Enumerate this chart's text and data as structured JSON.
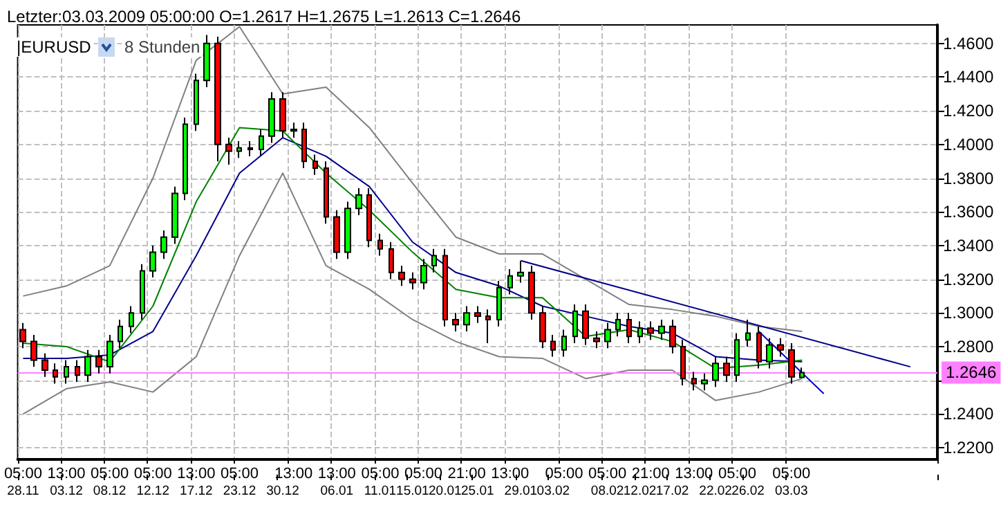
{
  "chart_data": {
    "type": "candlestick",
    "title": "Letzter:03.03.2009 05:00:00 O=1.2617 H=1.2675 L=1.2613 C=1.2646",
    "annotations": [
      "|EURUSD",
      "8 Stunden"
    ],
    "categories": [
      "05:00\n28.11",
      null,
      null,
      null,
      "13:00\n03.12",
      null,
      null,
      null,
      "05:00\n08.12",
      null,
      null,
      null,
      "05:00\n12.12",
      null,
      null,
      null,
      "13:00\n17.12",
      null,
      null,
      null,
      "05:00\n23.12",
      null,
      null,
      null,
      "\n30.12",
      "13:00",
      null,
      null,
      null,
      "13:00\n06.01",
      null,
      null,
      null,
      "05:00\n11.01",
      null,
      null,
      "\n15.01",
      "05:00",
      null,
      "\n20.01",
      null,
      "21:00",
      "\n25.01",
      null,
      null,
      "13:00",
      "\n29.01",
      null,
      null,
      "\n03.02",
      "05:00",
      null,
      null,
      null,
      "05:00\n08.02",
      null,
      null,
      "\n12.02",
      "21:00",
      null,
      "\n17.02",
      null,
      "13:00",
      null,
      "\n22.02",
      null,
      "05:00",
      "\n26.02",
      null,
      null,
      null,
      "05:00\n03.03",
      null,
      null,
      null,
      null,
      null,
      null,
      null,
      null,
      null,
      null,
      null,
      null,
      null
    ],
    "ohlc": [
      [
        1.29,
        1.294,
        1.279,
        1.283
      ],
      [
        1.283,
        1.287,
        1.268,
        1.272
      ],
      [
        1.272,
        1.276,
        1.262,
        1.266
      ],
      [
        1.266,
        1.27,
        1.258,
        1.262
      ],
      [
        1.262,
        1.272,
        1.258,
        1.268
      ],
      [
        1.268,
        1.272,
        1.259,
        1.263
      ],
      [
        1.263,
        1.278,
        1.259,
        1.274
      ],
      [
        1.274,
        1.278,
        1.264,
        1.268
      ],
      [
        1.268,
        1.287,
        1.264,
        1.283
      ],
      [
        1.283,
        1.296,
        1.279,
        1.292
      ],
      [
        1.292,
        1.304,
        1.288,
        1.3
      ],
      [
        1.3,
        1.329,
        1.296,
        1.325
      ],
      [
        1.325,
        1.34,
        1.321,
        1.336
      ],
      [
        1.336,
        1.349,
        1.332,
        1.345
      ],
      [
        1.345,
        1.375,
        1.341,
        1.371
      ],
      [
        1.371,
        1.416,
        1.367,
        1.412
      ],
      [
        1.412,
        1.442,
        1.408,
        1.438
      ],
      [
        1.438,
        1.465,
        1.434,
        1.46
      ],
      [
        1.46,
        1.464,
        1.39,
        1.4
      ],
      [
        1.4,
        1.404,
        1.388,
        1.396
      ],
      [
        1.396,
        1.402,
        1.392,
        1.398
      ],
      [
        1.398,
        1.402,
        1.393,
        1.397
      ],
      [
        1.397,
        1.409,
        1.393,
        1.405
      ],
      [
        1.405,
        1.431,
        1.401,
        1.427
      ],
      [
        1.427,
        1.431,
        1.404,
        1.408
      ],
      [
        1.408,
        1.413,
        1.404,
        1.409
      ],
      [
        1.409,
        1.413,
        1.386,
        1.39
      ],
      [
        1.39,
        1.394,
        1.382,
        1.386
      ],
      [
        1.386,
        1.39,
        1.353,
        1.357
      ],
      [
        1.357,
        1.361,
        1.332,
        1.336
      ],
      [
        1.336,
        1.366,
        1.332,
        1.362
      ],
      [
        1.362,
        1.374,
        1.358,
        1.37
      ],
      [
        1.37,
        1.374,
        1.339,
        1.343
      ],
      [
        1.343,
        1.347,
        1.334,
        1.338
      ],
      [
        1.338,
        1.342,
        1.32,
        1.324
      ],
      [
        1.324,
        1.328,
        1.316,
        1.32
      ],
      [
        1.32,
        1.324,
        1.314,
        1.318
      ],
      [
        1.318,
        1.332,
        1.314,
        1.328
      ],
      [
        1.328,
        1.338,
        1.324,
        1.334
      ],
      [
        1.334,
        1.338,
        1.292,
        1.296
      ],
      [
        1.296,
        1.3,
        1.289,
        1.293
      ],
      [
        1.293,
        1.304,
        1.289,
        1.3
      ],
      [
        1.3,
        1.304,
        1.294,
        1.298
      ],
      [
        1.298,
        1.302,
        1.282,
        1.296
      ],
      [
        1.296,
        1.319,
        1.292,
        1.315
      ],
      [
        1.315,
        1.326,
        1.311,
        1.322
      ],
      [
        1.322,
        1.331,
        1.318,
        1.324
      ],
      [
        1.324,
        1.328,
        1.296,
        1.3
      ],
      [
        1.3,
        1.304,
        1.279,
        1.283
      ],
      [
        1.283,
        1.287,
        1.274,
        1.278
      ],
      [
        1.278,
        1.29,
        1.274,
        1.286
      ],
      [
        1.286,
        1.305,
        1.282,
        1.301
      ],
      [
        1.301,
        1.305,
        1.281,
        1.285
      ],
      [
        1.285,
        1.289,
        1.279,
        1.283
      ],
      [
        1.283,
        1.294,
        1.279,
        1.29
      ],
      [
        1.29,
        1.3,
        1.286,
        1.296
      ],
      [
        1.296,
        1.3,
        1.282,
        1.286
      ],
      [
        1.286,
        1.295,
        1.282,
        1.291
      ],
      [
        1.291,
        1.295,
        1.284,
        1.288
      ],
      [
        1.288,
        1.296,
        1.284,
        1.292
      ],
      [
        1.292,
        1.296,
        1.276,
        1.28
      ],
      [
        1.28,
        1.284,
        1.257,
        1.261
      ],
      [
        1.261,
        1.265,
        1.254,
        1.258
      ],
      [
        1.258,
        1.264,
        1.254,
        1.26
      ],
      [
        1.26,
        1.274,
        1.256,
        1.27
      ],
      [
        1.27,
        1.274,
        1.259,
        1.263
      ],
      [
        1.263,
        1.288,
        1.259,
        1.284
      ],
      [
        1.284,
        1.296,
        1.28,
        1.288
      ],
      [
        1.288,
        1.292,
        1.267,
        1.271
      ],
      [
        1.271,
        1.285,
        1.267,
        1.281
      ],
      [
        1.281,
        1.285,
        1.274,
        1.278
      ],
      [
        1.278,
        1.282,
        1.258,
        1.262
      ],
      [
        1.2617,
        1.2675,
        1.2613,
        1.2646
      ],
      null,
      null,
      null,
      null,
      null,
      null,
      null,
      null,
      null,
      null,
      null,
      null
    ],
    "series": [
      {
        "type": "line",
        "color": "#808080",
        "values": [
          1.31,
          null,
          null,
          null,
          1.316,
          null,
          null,
          null,
          1.328,
          null,
          null,
          null,
          1.38,
          null,
          null,
          null,
          1.45,
          null,
          null,
          null,
          1.47,
          null,
          null,
          null,
          1.43,
          null,
          null,
          null,
          1.434,
          null,
          null,
          null,
          1.41,
          null,
          null,
          null,
          1.377,
          null,
          null,
          null,
          1.345,
          null,
          null,
          null,
          1.335,
          null,
          null,
          null,
          1.335,
          null,
          null,
          null,
          1.32,
          null,
          null,
          null,
          1.305,
          null,
          null,
          null,
          1.302,
          null,
          null,
          null,
          1.298,
          null,
          null,
          null,
          1.292,
          null,
          null,
          null,
          1.289,
          null,
          null,
          null,
          null,
          null,
          null,
          null,
          null,
          null,
          null,
          null,
          null
        ]
      },
      {
        "type": "line",
        "color": "#808080",
        "values": [
          1.24,
          null,
          null,
          null,
          1.255,
          null,
          null,
          null,
          1.259,
          null,
          null,
          null,
          1.253,
          null,
          null,
          null,
          1.274,
          null,
          null,
          null,
          1.334,
          null,
          null,
          null,
          1.383,
          null,
          null,
          null,
          1.328,
          null,
          null,
          null,
          1.314,
          null,
          null,
          null,
          1.296,
          null,
          null,
          null,
          1.283,
          null,
          null,
          null,
          1.274,
          null,
          null,
          null,
          1.273,
          null,
          null,
          null,
          1.261,
          null,
          null,
          null,
          1.266,
          null,
          null,
          null,
          1.266,
          null,
          null,
          null,
          1.248,
          null,
          null,
          null,
          1.253,
          null,
          null,
          null,
          1.261,
          null,
          null,
          null,
          null,
          null,
          null,
          null,
          null,
          null,
          null,
          null,
          null
        ]
      },
      {
        "type": "line",
        "color": "#00008b",
        "values": [
          1.273,
          null,
          null,
          null,
          1.273,
          null,
          null,
          null,
          1.275,
          null,
          null,
          null,
          1.289,
          null,
          null,
          null,
          1.334,
          null,
          null,
          null,
          1.383,
          null,
          null,
          null,
          1.404,
          null,
          null,
          null,
          1.393,
          null,
          null,
          null,
          1.375,
          null,
          null,
          null,
          1.342,
          null,
          null,
          null,
          1.324,
          null,
          null,
          null,
          1.316,
          null,
          null,
          null,
          1.304,
          null,
          null,
          null,
          1.298,
          null,
          null,
          null,
          1.292,
          null,
          null,
          null,
          1.288,
          null,
          null,
          null,
          1.274,
          null,
          null,
          null,
          1.272,
          null,
          null,
          null,
          1.271,
          null,
          null,
          null,
          null,
          null,
          null,
          null,
          null,
          null,
          null,
          null,
          null
        ]
      },
      {
        "type": "line",
        "color": "#008000",
        "values": [
          1.282,
          null,
          null,
          null,
          1.28,
          null,
          null,
          null,
          1.271,
          null,
          null,
          null,
          1.304,
          null,
          null,
          null,
          1.366,
          null,
          null,
          null,
          1.41,
          null,
          null,
          null,
          1.408,
          null,
          null,
          null,
          1.383,
          null,
          null,
          null,
          1.361,
          null,
          null,
          null,
          1.336,
          null,
          null,
          null,
          1.314,
          null,
          null,
          null,
          1.309,
          null,
          null,
          null,
          1.309,
          null,
          null,
          null,
          1.286,
          null,
          null,
          null,
          1.29,
          null,
          null,
          null,
          1.283,
          null,
          null,
          null,
          1.267,
          null,
          null,
          null,
          1.269,
          null,
          null,
          null,
          1.272,
          null,
          null,
          null,
          null,
          null,
          null,
          null,
          null,
          null,
          null,
          null,
          null
        ]
      },
      {
        "type": "line",
        "color": "#00008b",
        "values": [
          null,
          null,
          null,
          null,
          null,
          null,
          null,
          null,
          null,
          null,
          null,
          null,
          null,
          null,
          null,
          null,
          null,
          null,
          null,
          null,
          null,
          null,
          null,
          null,
          null,
          null,
          null,
          null,
          null,
          null,
          null,
          null,
          null,
          null,
          null,
          null,
          null,
          null,
          null,
          null,
          null,
          null,
          null,
          null,
          null,
          null,
          1.331,
          null,
          null,
          null,
          null,
          null,
          null,
          null,
          null,
          null,
          null,
          null,
          null,
          null,
          null,
          null,
          null,
          null,
          null,
          null,
          null,
          null,
          null,
          null,
          null,
          null,
          null,
          null,
          null,
          null,
          null,
          null,
          null,
          null,
          null,
          null,
          1.268,
          null,
          null
        ]
      },
      {
        "type": "line",
        "color": "#0000cd",
        "values": [
          null,
          null,
          null,
          null,
          null,
          null,
          null,
          null,
          null,
          null,
          null,
          null,
          null,
          null,
          null,
          null,
          null,
          null,
          null,
          null,
          null,
          null,
          null,
          null,
          null,
          null,
          null,
          null,
          null,
          null,
          null,
          null,
          null,
          null,
          null,
          null,
          null,
          null,
          null,
          null,
          null,
          null,
          null,
          null,
          null,
          null,
          null,
          null,
          null,
          null,
          null,
          null,
          null,
          null,
          null,
          null,
          null,
          null,
          null,
          null,
          null,
          null,
          null,
          null,
          null,
          null,
          null,
          null,
          1.289,
          null,
          null,
          null,
          null,
          null,
          1.252,
          null,
          null,
          null,
          null,
          null,
          null,
          null,
          null,
          null,
          null
        ]
      }
    ],
    "ylim": [
      1.213,
      1.471
    ],
    "yticks": [
      {
        "value": 1.22,
        "label": "1.2200"
      },
      {
        "value": 1.24,
        "label": "1.2400"
      },
      {
        "value": 1.26,
        "label": null
      },
      {
        "value": 1.28,
        "label": "1.2800"
      },
      {
        "value": 1.3,
        "label": "1.3000"
      },
      {
        "value": 1.32,
        "label": "1.3200"
      },
      {
        "value": 1.34,
        "label": "1.3400"
      },
      {
        "value": 1.36,
        "label": "1.3600"
      },
      {
        "value": 1.38,
        "label": "1.3800"
      },
      {
        "value": 1.4,
        "label": "1.4000"
      },
      {
        "value": 1.42,
        "label": "1.4200"
      },
      {
        "value": 1.44,
        "label": "1.4400"
      },
      {
        "value": 1.46,
        "label": "1.4600"
      }
    ],
    "ref_lines": [
      {
        "axis": "y",
        "value": 1.2646,
        "label": "1.2646",
        "color": "#ff80ff"
      }
    ],
    "grid": true,
    "marker": "none"
  }
}
